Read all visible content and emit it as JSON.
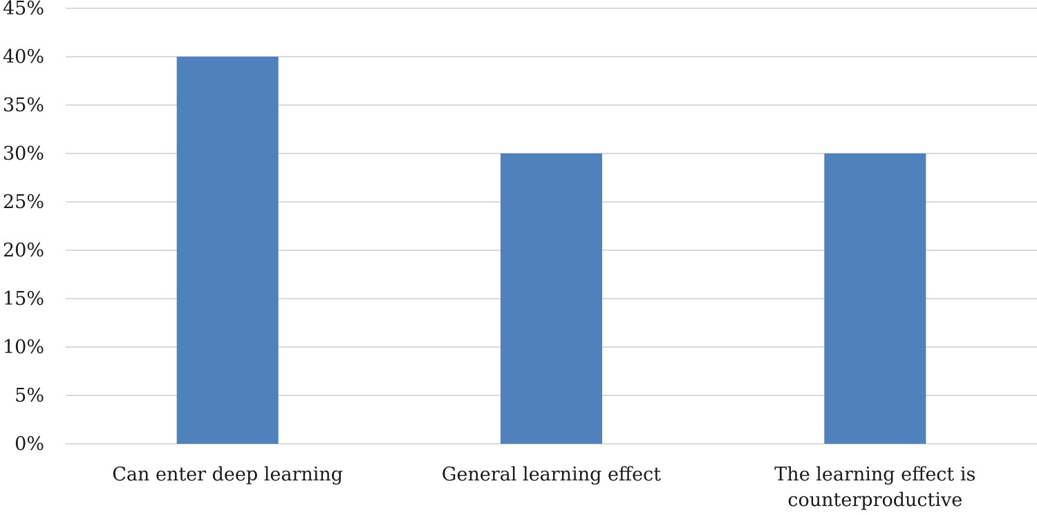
{
  "chart_data": {
    "type": "bar",
    "title": "",
    "xlabel": "",
    "ylabel": "",
    "categories": [
      [
        "Can enter deep learning"
      ],
      [
        "General learning effect"
      ],
      [
        "The learning effect is",
        "counterproductive"
      ]
    ],
    "values": [
      40,
      30,
      30
    ],
    "value_format": "percent",
    "ylim": [
      0,
      45
    ],
    "yticks": [
      0,
      5,
      10,
      15,
      20,
      25,
      30,
      35,
      40,
      45
    ],
    "ytick_labels": [
      "0%",
      "5%",
      "10%",
      "15%",
      "20%",
      "25%",
      "30%",
      "35%",
      "40%",
      "45%"
    ],
    "grid": true,
    "legend": "none",
    "colors": {
      "bar": "#4f81bd",
      "grid": "#d9d9d9",
      "text": "#1a1a1a"
    }
  }
}
